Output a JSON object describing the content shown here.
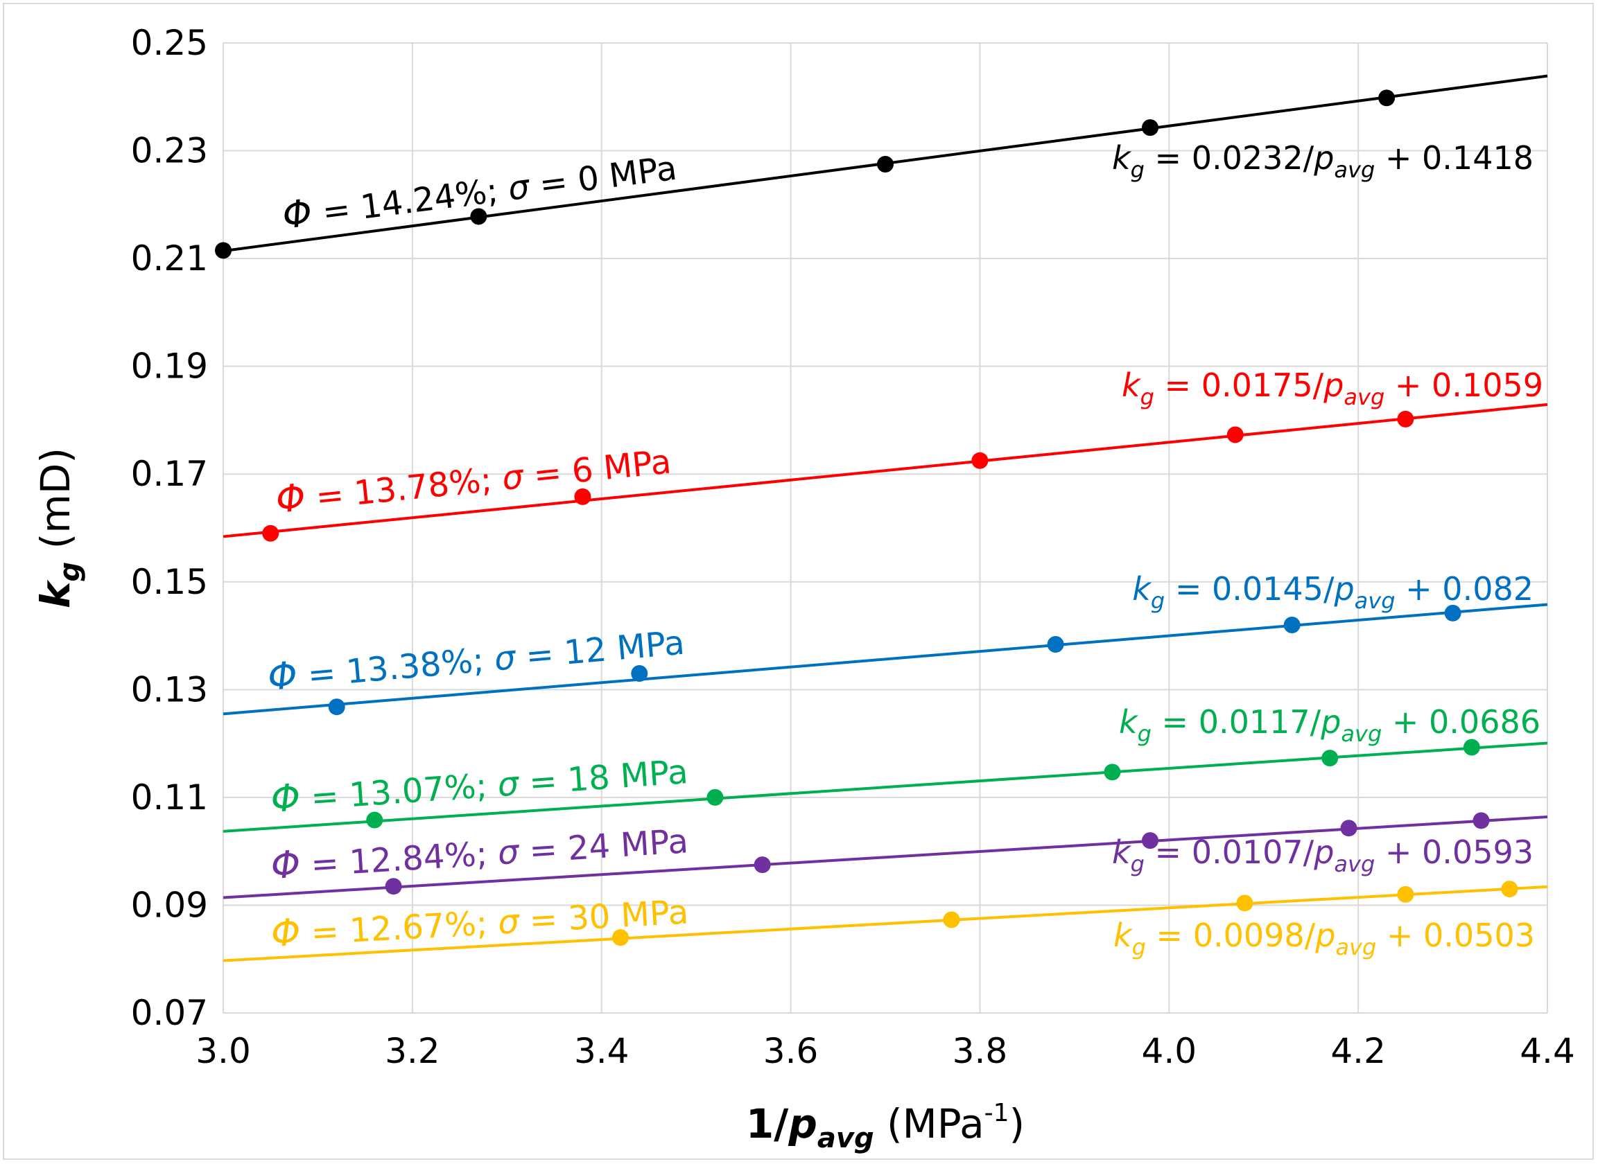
{
  "chart_data": {
    "type": "scatter",
    "title": "",
    "xlabel": {
      "main": "1/",
      "italic": "p",
      "sub": "avg",
      "unit_pre": " (MPa",
      "sup": "-1",
      "unit_post": ")"
    },
    "ylabel": {
      "italic": "k",
      "sub": "g",
      "unit": " (mD)"
    },
    "xlim": [
      3.0,
      4.4
    ],
    "ylim": [
      0.07,
      0.25
    ],
    "xticks": [
      "3.0",
      "3.2",
      "3.4",
      "3.6",
      "3.8",
      "4.0",
      "4.2",
      "4.4"
    ],
    "yticks": [
      "0.07",
      "0.09",
      "0.11",
      "0.13",
      "0.15",
      "0.17",
      "0.19",
      "0.21",
      "0.23",
      "0.25"
    ],
    "grid": true,
    "series": [
      {
        "name": "Φ = 14.24%; σ = 0 MPa",
        "phi": "Φ",
        "phi_text": " = 14.24%; ",
        "sigma": "σ",
        "sigma_text": " = 0 MPa",
        "color": "#000000",
        "x": [
          3.0,
          3.27,
          3.7,
          3.98,
          4.23
        ],
        "y": [
          0.2115,
          0.2178,
          0.2275,
          0.2343,
          0.2398
        ],
        "fit": {
          "slope": 0.0232,
          "intercept": 0.1418
        },
        "equation": {
          "k": "k",
          "g": "g",
          "mid": " = 0.0232/",
          "p": "p",
          "avg": "avg",
          "end": "  + 0.1418"
        }
      },
      {
        "name": "Φ = 13.78%; σ = 6 MPa",
        "phi": "Φ",
        "phi_text": " = 13.78%; ",
        "sigma": "σ",
        "sigma_text": " = 6 MPa",
        "color": "#ff0000",
        "x": [
          3.05,
          3.38,
          3.8,
          4.07,
          4.25
        ],
        "y": [
          0.159,
          0.1658,
          0.1725,
          0.1773,
          0.1802
        ],
        "fit": {
          "slope": 0.0175,
          "intercept": 0.1059
        },
        "equation": {
          "k": "k",
          "g": "g",
          "mid": " = 0.0175/",
          "p": "p",
          "avg": "avg",
          "end": "  + 0.1059"
        }
      },
      {
        "name": "Φ = 13.38%; σ = 12 MPa",
        "phi": "Φ",
        "phi_text": " = 13.38%; ",
        "sigma": "σ",
        "sigma_text": " = 12 MPa",
        "color": "#0070c0",
        "x": [
          3.12,
          3.44,
          3.88,
          4.13,
          4.3
        ],
        "y": [
          0.1268,
          0.133,
          0.1384,
          0.142,
          0.1442
        ],
        "fit": {
          "slope": 0.0145,
          "intercept": 0.082
        },
        "equation": {
          "k": "k",
          "g": "g",
          "mid": " = 0.0145/",
          "p": "p",
          "avg": "avg",
          "end": " + 0.082"
        }
      },
      {
        "name": "Φ = 13.07%; σ = 18 MPa",
        "phi": "Φ",
        "phi_text": " = 13.07%; ",
        "sigma": "σ",
        "sigma_text": " = 18 MPa",
        "color": "#00b050",
        "x": [
          3.16,
          3.52,
          3.94,
          4.17,
          4.32
        ],
        "y": [
          0.1058,
          0.11,
          0.1147,
          0.1173,
          0.1193
        ],
        "fit": {
          "slope": 0.0117,
          "intercept": 0.0686
        },
        "equation": {
          "k": "k",
          "g": "g",
          "mid": " = 0.0117/",
          "p": "p",
          "avg": "avg",
          "end": " + 0.0686"
        }
      },
      {
        "name": "Φ = 12.84%; σ = 24 MPa",
        "phi": "Φ",
        "phi_text": " = 12.84%; ",
        "sigma": "σ",
        "sigma_text": " = 24 MPa",
        "color": "#7030a0",
        "x": [
          3.18,
          3.57,
          3.98,
          4.19,
          4.33
        ],
        "y": [
          0.0935,
          0.0975,
          0.102,
          0.1043,
          0.1057
        ],
        "fit": {
          "slope": 0.0107,
          "intercept": 0.0593
        },
        "equation": {
          "k": "k",
          "g": "g",
          "mid": " = 0.0107/",
          "p": "p",
          "avg": "avg",
          "end": " + 0.0593"
        }
      },
      {
        "name": "Φ = 12.67%; σ = 30 MPa",
        "phi": "Φ",
        "phi_text": " = 12.67%; ",
        "sigma": "σ",
        "sigma_text": " = 30 MPa",
        "color": "#ffc000",
        "x": [
          3.42,
          3.77,
          4.08,
          4.25,
          4.36
        ],
        "y": [
          0.084,
          0.0873,
          0.0904,
          0.092,
          0.093
        ],
        "fit": {
          "slope": 0.0098,
          "intercept": 0.0503
        },
        "equation": {
          "k": "k",
          "g": "g",
          "mid": " = 0.0098/",
          "p": "p",
          "avg": "avg",
          "end": " + 0.0503"
        }
      }
    ]
  }
}
